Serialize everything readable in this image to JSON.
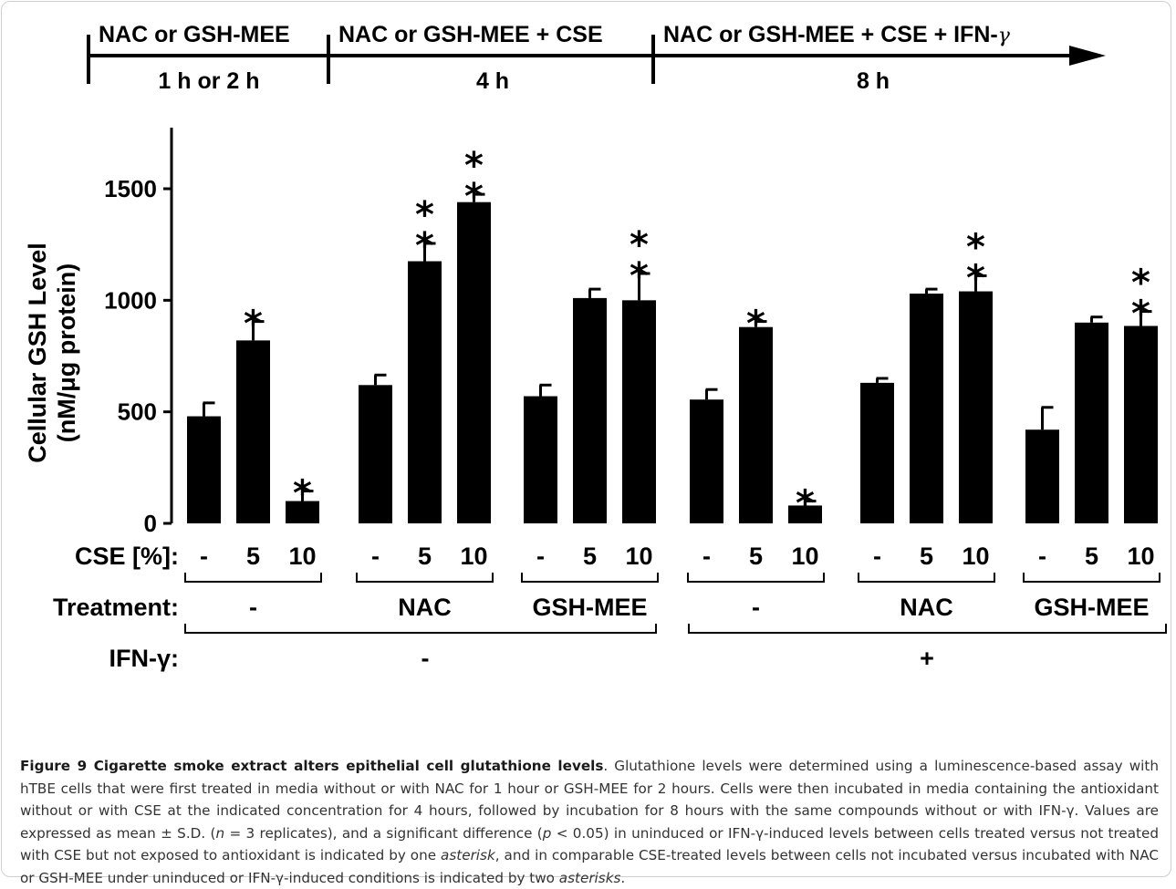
{
  "timeline": {
    "phases": [
      {
        "label": "NAC or GSH-MEE",
        "duration": "1 h or 2 h"
      },
      {
        "label": "NAC or GSH-MEE + CSE",
        "duration": "4 h"
      },
      {
        "label": "NAC or GSH-MEE + CSE + IFN-",
        "label_greek": "γ",
        "duration": "8 h"
      }
    ]
  },
  "chart_data": {
    "type": "bar",
    "ylabel_line1": "Cellular GSH Level",
    "ylabel_line2": "(nM/μg protein)",
    "ylim": [
      0,
      1750
    ],
    "yticks": [
      "0",
      "500",
      "1000",
      "1500"
    ],
    "ytick_values": [
      0,
      500,
      1000,
      1500
    ],
    "row_labels": {
      "cse": "CSE [%]:",
      "treatment": "Treatment:",
      "ifn": "IFN-γ:"
    },
    "groups": [
      {
        "treatment": "-",
        "ifn": "-",
        "bars": [
          {
            "cse": "-",
            "value": 480,
            "error": 60,
            "sig": ""
          },
          {
            "cse": "5",
            "value": 820,
            "error": 85,
            "sig": "*"
          },
          {
            "cse": "10",
            "value": 100,
            "error": 45,
            "sig": "*"
          }
        ]
      },
      {
        "treatment": "NAC",
        "ifn": "-",
        "bars": [
          {
            "cse": "-",
            "value": 620,
            "error": 45,
            "sig": ""
          },
          {
            "cse": "5",
            "value": 1175,
            "error": 80,
            "sig": "**"
          },
          {
            "cse": "10",
            "value": 1440,
            "error": 35,
            "sig": "**"
          }
        ]
      },
      {
        "treatment": "GSH-MEE",
        "ifn": "-",
        "bars": [
          {
            "cse": "-",
            "value": 570,
            "error": 50,
            "sig": ""
          },
          {
            "cse": "5",
            "value": 1010,
            "error": 40,
            "sig": ""
          },
          {
            "cse": "10",
            "value": 1000,
            "error": 120,
            "sig": "**"
          }
        ]
      },
      {
        "treatment": "-",
        "ifn": "+",
        "bars": [
          {
            "cse": "-",
            "value": 555,
            "error": 45,
            "sig": ""
          },
          {
            "cse": "5",
            "value": 880,
            "error": 25,
            "sig": "*"
          },
          {
            "cse": "10",
            "value": 80,
            "error": 20,
            "sig": "*"
          }
        ]
      },
      {
        "treatment": "NAC",
        "ifn": "+",
        "bars": [
          {
            "cse": "-",
            "value": 630,
            "error": 20,
            "sig": ""
          },
          {
            "cse": "5",
            "value": 1030,
            "error": 20,
            "sig": ""
          },
          {
            "cse": "10",
            "value": 1040,
            "error": 70,
            "sig": "**"
          }
        ]
      },
      {
        "treatment": "GSH-MEE",
        "ifn": "+",
        "bars": [
          {
            "cse": "-",
            "value": 420,
            "error": 100,
            "sig": ""
          },
          {
            "cse": "5",
            "value": 900,
            "error": 25,
            "sig": ""
          },
          {
            "cse": "10",
            "value": 885,
            "error": 65,
            "sig": "**"
          }
        ]
      }
    ],
    "ifn_groups": [
      {
        "label": "-"
      },
      {
        "label": "+"
      }
    ],
    "colors": {
      "bar": "#000000",
      "axis": "#000000"
    }
  },
  "caption": {
    "title": "Figure 9 Cigarette smoke extract alters epithelial cell glutathione levels",
    "p1": ". Glutathione levels were determined using a luminescence-based assay with hTBE cells that were first treated in media without or with NAC for 1 hour or GSH-MEE for 2 hours. Cells were then incubated in media containing the antioxidant without or with CSE at the indicated concentration for 4 hours, followed by incubation for 8 hours with the same compounds without or with IFN-γ. Values are expressed as mean ± S.D. (",
    "n_italic": "n",
    "p2": " = 3 replicates), and a significant difference (",
    "p_italic": "p",
    "p3": " < 0.05) in uninduced or IFN-γ-induced levels between cells treated versus not treated with CSE but not exposed to antioxidant is indicated by one ",
    "ast1": "asterisk",
    "p4": ", and in comparable CSE-treated levels between cells not incubated versus incubated with NAC or GSH-MEE under uninduced or IFN-γ-induced conditions is indicated by two ",
    "ast2": "asterisks",
    "p5": "."
  }
}
